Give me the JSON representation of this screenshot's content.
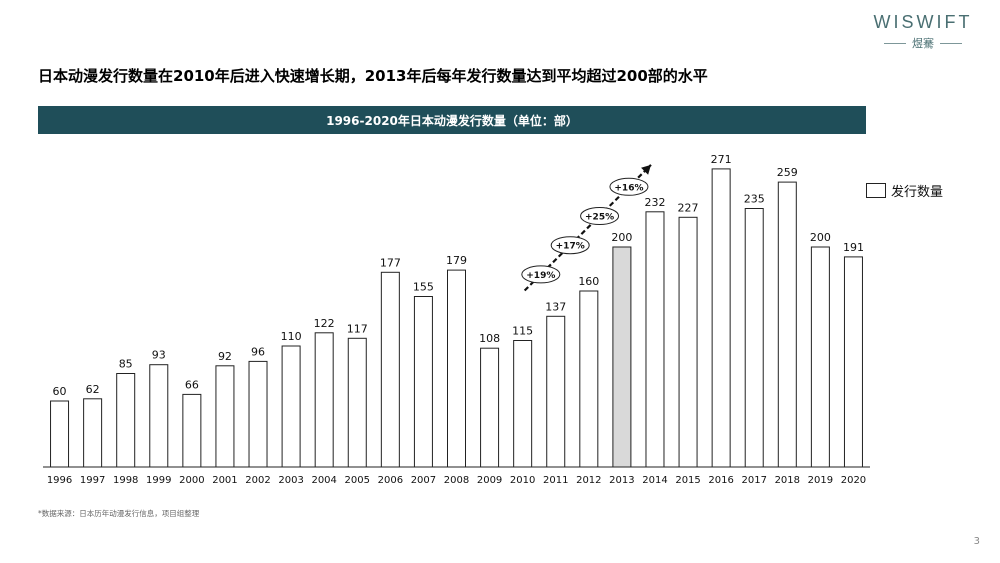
{
  "brand": {
    "logo_text": "WISWIFT",
    "logo_sub": "煜騫"
  },
  "headline": "日本动漫发行数量在2010年后进入快速增长期，2013年后每年发行数量达到平均超过200部的水平",
  "chart_data": {
    "type": "bar",
    "title": "1996-2020年日本动漫发行数量（单位：部）",
    "categories": [
      "1996",
      "1997",
      "1998",
      "1999",
      "2000",
      "2001",
      "2002",
      "2003",
      "2004",
      "2005",
      "2006",
      "2007",
      "2008",
      "2009",
      "2010",
      "2011",
      "2012",
      "2013",
      "2014",
      "2015",
      "2016",
      "2017",
      "2018",
      "2019",
      "2020"
    ],
    "series": [
      {
        "name": "发行数量",
        "values": [
          60,
          62,
          85,
          93,
          66,
          92,
          96,
          110,
          122,
          117,
          177,
          155,
          179,
          108,
          115,
          137,
          160,
          200,
          232,
          227,
          271,
          235,
          259,
          200,
          191
        ]
      }
    ],
    "highlight_category": "2013",
    "ylim": [
      0,
      290
    ],
    "grid": false,
    "legend_position": "right",
    "annotations": [
      {
        "text": "+19%",
        "between": [
          "2010",
          "2011"
        ]
      },
      {
        "text": "+17%",
        "between": [
          "2011",
          "2012"
        ]
      },
      {
        "text": "+25%",
        "between": [
          "2012",
          "2013"
        ]
      },
      {
        "text": "+16%",
        "between": [
          "2013",
          "2014"
        ]
      }
    ],
    "colors": {
      "bar_fill": "#ffffff",
      "bar_stroke": "#222222",
      "highlight_fill": "#d9d9d9",
      "banner": "#1f4e59"
    }
  },
  "footnote": "*数据来源：日本历年动漫发行信息，项目组整理",
  "page_number": "3"
}
